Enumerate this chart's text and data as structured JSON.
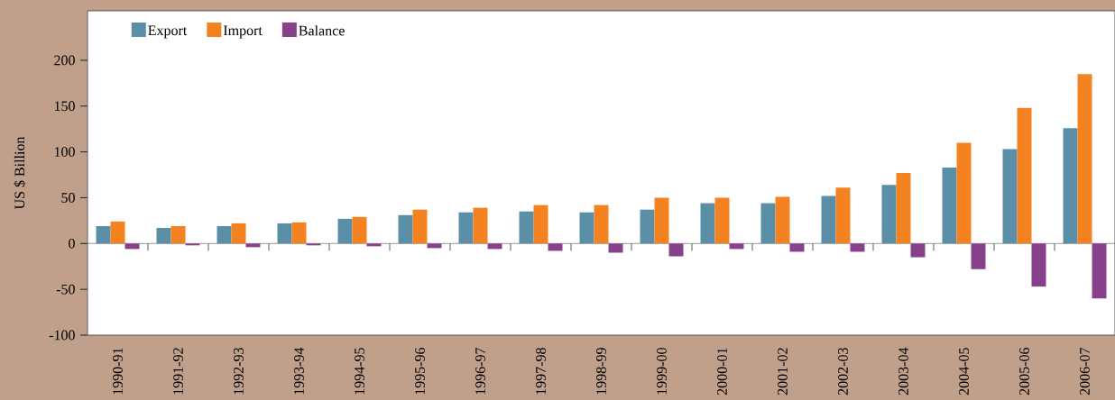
{
  "chart_data": {
    "type": "bar",
    "ylabel": "US $ Billion",
    "categories": [
      "1990-91",
      "1991-92",
      "1992-93",
      "1993-94",
      "1994-95",
      "1995-96",
      "1996-97",
      "1997-98",
      "1998-99",
      "1999-00",
      "2000-01",
      "2001-02",
      "2002-03",
      "2003-04",
      "2004-05",
      "2005-06",
      "2006-07"
    ],
    "series": [
      {
        "name": "Export",
        "color": "#5b8fa8",
        "values": [
          19,
          17,
          19,
          22,
          27,
          31,
          34,
          35,
          34,
          37,
          44,
          44,
          52,
          64,
          83,
          103,
          126
        ]
      },
      {
        "name": "Import",
        "color": "#f58220",
        "values": [
          24,
          19,
          22,
          23,
          29,
          37,
          39,
          42,
          42,
          50,
          50,
          51,
          61,
          77,
          110,
          148,
          185
        ]
      },
      {
        "name": "Balance",
        "color": "#87418a",
        "values": [
          -6,
          -2,
          -4,
          -2,
          -3,
          -5,
          -6,
          -8,
          -10,
          -14,
          -6,
          -9,
          -9,
          -15,
          -28,
          -47,
          -60
        ]
      }
    ],
    "ylim": [
      -100,
      254
    ],
    "yticks": [
      -100,
      -50,
      0,
      50,
      100,
      150,
      200
    ],
    "ref_lines": [
      {
        "axis": "y",
        "value": 0,
        "color": "#555555"
      }
    ],
    "legend": "top left"
  }
}
